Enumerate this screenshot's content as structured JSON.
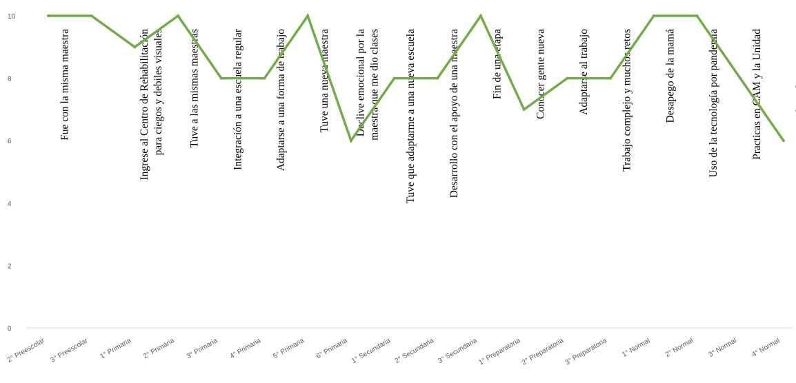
{
  "chart_data": {
    "type": "line",
    "title": "",
    "xlabel": "",
    "ylabel": "",
    "ylim": [
      0,
      10
    ],
    "yticks": [
      0,
      2,
      4,
      6,
      8,
      10
    ],
    "grid": false,
    "legend": "none",
    "line_color": "#70AD47",
    "categories": [
      "2° Preescolar",
      "3° Preescolar",
      "1° Primaria",
      "2° Primaria",
      "3° Primaria",
      "4° Primaria",
      "5° Primaria",
      "6° Primaria",
      "1° Secundaria",
      "2° Secundaria",
      "3° Secundaria",
      "1° Preparatoria",
      "2° Preparatoria",
      "3° Preparatoria",
      "1° Normal",
      "2° Normal",
      "3° Normal",
      "4° Normal"
    ],
    "series": [
      {
        "values": [
          10,
          10,
          9,
          10,
          8,
          8,
          10,
          6,
          8,
          8,
          10,
          7,
          8,
          8,
          10,
          10,
          8,
          6
        ]
      }
    ],
    "annotations": [
      [
        "Fue con la misma maestra"
      ],
      [],
      [
        "Ingrese al Centro de Rehabilitación",
        "para ciegos y debiles visuales"
      ],
      [
        "Tuve a las mismas maestras"
      ],
      [
        "Integración a una escuela regular"
      ],
      [
        "Adaptarse a una forma de trabajo"
      ],
      [
        "Tuve una nueva maestra"
      ],
      [
        "Declive emocional por la",
        "maestra que me dio clases"
      ],
      [
        "Tuve que adaptarme a una nueva escuela"
      ],
      [
        "Desarrollo con el apoyo de una maestra"
      ],
      [
        "Fin de una etapa"
      ],
      [
        "Conocer gente nueva"
      ],
      [
        "Adaptarse al trabajo"
      ],
      [
        "Trabajo complejo y muchos retos"
      ],
      [
        "Desapego de la mamá"
      ],
      [
        "Uso de la tecnología por pandemia"
      ],
      [
        "Practicas en CAM y la Unidad"
      ],
      [
        "No lo realizo por gusto"
      ]
    ]
  }
}
